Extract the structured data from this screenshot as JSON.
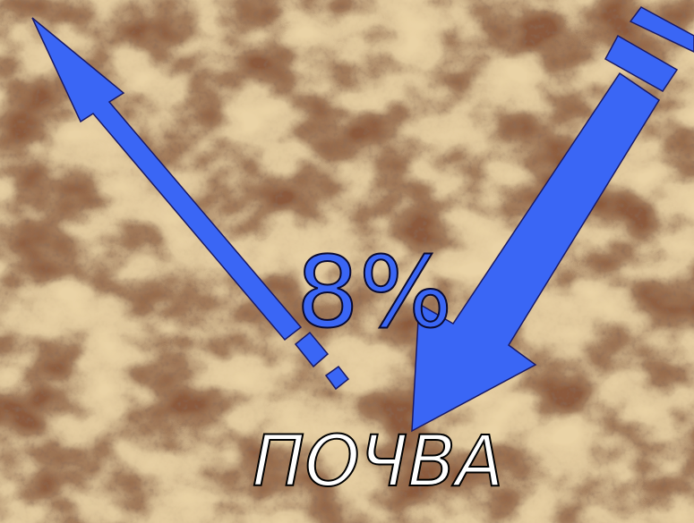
{
  "label": "8%",
  "caption": "ПОЧВА"
}
